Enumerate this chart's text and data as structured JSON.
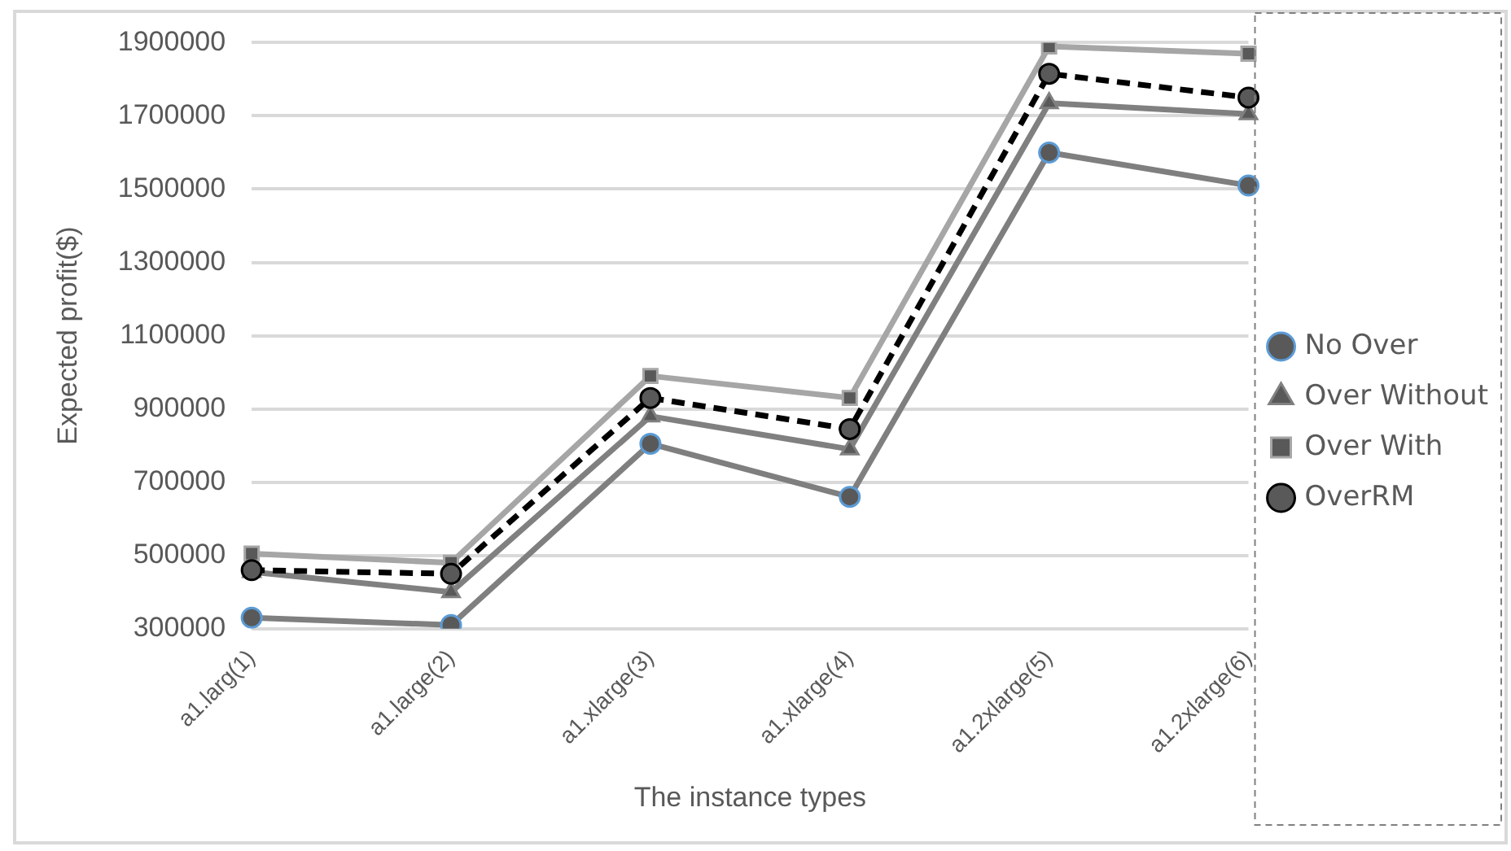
{
  "chart_data": {
    "type": "line",
    "xlabel": "The instance types",
    "ylabel": "Expected profit($)",
    "categories": [
      "a1.larg(1)",
      "a1.large(2)",
      "a1.xlarge(3)",
      "a1.xlarge(4)",
      "a1.2xlarge(5)",
      "a1.2xlarge(6)"
    ],
    "series": [
      {
        "name": "No Over",
        "color": "#7f7f7f",
        "marker": "circle",
        "line_style": "solid",
        "values": [
          330000,
          310000,
          805000,
          660000,
          1600000,
          1510000
        ]
      },
      {
        "name": "Over Without",
        "color": "#808080",
        "marker": "triangle",
        "line_style": "solid",
        "values": [
          455000,
          400000,
          880000,
          790000,
          1735000,
          1705000
        ]
      },
      {
        "name": "Over With",
        "color": "#a6a6a6",
        "marker": "square",
        "line_style": "solid",
        "values": [
          505000,
          480000,
          990000,
          930000,
          1890000,
          1870000
        ]
      },
      {
        "name": "OverRM",
        "color": "#000000",
        "marker": "circle",
        "line_style": "dashed",
        "values": [
          460000,
          450000,
          930000,
          845000,
          1815000,
          1750000
        ]
      }
    ],
    "ylim": [
      300000,
      1900000
    ],
    "yticks": [
      300000,
      500000,
      700000,
      900000,
      1100000,
      1300000,
      1500000,
      1700000,
      1900000
    ],
    "grid": "y",
    "legend": "right"
  }
}
